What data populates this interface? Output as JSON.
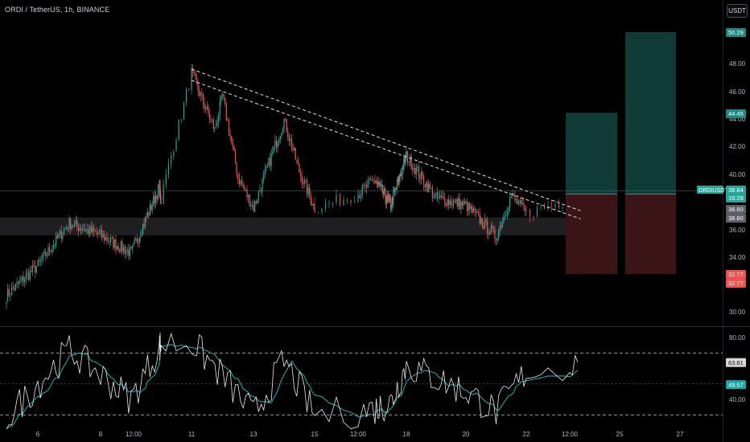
{
  "header": {
    "symbol_title": "ORDI / TetherUS, 1h, BINANCE",
    "currency_button": "USDT"
  },
  "colors": {
    "up": "#26a69a",
    "down": "#ef5350",
    "rsi_line": "#e8e8e8",
    "rsi_ma": "#19b3b0",
    "profit_zone": "#0f3a36",
    "loss_zone": "#3b1417",
    "support_zone": "#2a2a2d"
  },
  "chart_data": [
    {
      "type": "candlestick",
      "title": "ORDI / TetherUS, 1h, BINANCE",
      "x_ticks": [
        "6",
        "8",
        "12:00",
        "11",
        "13",
        "15",
        "12:00",
        "18",
        "20",
        "22",
        "12:00",
        "25",
        "27"
      ],
      "y_ticks": [
        "48.00",
        "46.00",
        "44.00",
        "42.00",
        "40.00",
        "36.00",
        "34.00",
        "32.00",
        "30.00"
      ],
      "ylim": [
        29.0,
        52.0
      ],
      "keypoints": [
        {
          "x": "5",
          "close": 31.2
        },
        {
          "x": "6",
          "close": 33.4
        },
        {
          "x": "7",
          "close": 36.5
        },
        {
          "x": "8",
          "close": 35.6
        },
        {
          "x": "9",
          "close": 34.3
        },
        {
          "x": "10",
          "close": 39.1
        },
        {
          "x": "10 12:00",
          "close": 38.3
        },
        {
          "x": "11",
          "close": 47.3
        },
        {
          "x": "11 18:00",
          "close": 43.2
        },
        {
          "x": "12",
          "close": 45.7
        },
        {
          "x": "12 12:00",
          "close": 39.8
        },
        {
          "x": "13",
          "close": 37.6
        },
        {
          "x": "14",
          "close": 43.9
        },
        {
          "x": "14 12:00",
          "close": 40.2
        },
        {
          "x": "15",
          "close": 37.6
        },
        {
          "x": "16",
          "close": 39.6
        },
        {
          "x": "17",
          "close": 37.8
        },
        {
          "x": "18",
          "close": 41.3
        },
        {
          "x": "19",
          "close": 38.3
        },
        {
          "x": "20",
          "close": 37.8
        },
        {
          "x": "21",
          "close": 35.5
        },
        {
          "x": "21 12:00",
          "close": 38.5
        },
        {
          "x": "22",
          "close": 37.2
        },
        {
          "x": "22 18:00",
          "close": 38.7
        }
      ],
      "trendlines": [
        {
          "name": "upper",
          "from": {
            "x": "11",
            "y": 47.6
          },
          "to": {
            "x": "22 20:00",
            "y": 37.4
          }
        },
        {
          "name": "lower",
          "from": {
            "x": "11",
            "y": 46.8
          },
          "to": {
            "x": "22 20:00",
            "y": 36.8
          }
        }
      ],
      "support_zone": [
        35.6,
        36.9
      ],
      "positions": [
        {
          "entry": 38.6,
          "target": 44.45,
          "stop": 32.77
        },
        {
          "entry": 38.6,
          "target": 50.29,
          "stop": 32.77
        }
      ],
      "price_labels": [
        {
          "text": "50.29",
          "value": 50.29,
          "kind": "profit"
        },
        {
          "text": "44.45",
          "value": 44.45,
          "kind": "profit"
        },
        {
          "text": "ORDIUSDT",
          "value": 38.84,
          "kind": "symbol"
        },
        {
          "text": "38.84",
          "value": 38.84,
          "kind": "last"
        },
        {
          "text": "16:28",
          "value": 38.84,
          "kind": "countdown"
        },
        {
          "text": "38.60",
          "value": 38.6,
          "kind": "entry"
        },
        {
          "text": "38.60",
          "value": 38.6,
          "kind": "entry"
        },
        {
          "text": "32.77",
          "value": 32.77,
          "kind": "loss"
        },
        {
          "text": "32.77",
          "value": 32.77,
          "kind": "loss"
        }
      ]
    },
    {
      "type": "line",
      "y_ticks": [
        "80.00",
        "40.00"
      ],
      "ylim": [
        18,
        88
      ],
      "bands": [
        70,
        30
      ],
      "series_keypoints": [
        {
          "x": "5",
          "rsi": 28
        },
        {
          "x": "7",
          "rsi": 72
        },
        {
          "x": "9",
          "rsi": 40
        },
        {
          "x": "10",
          "rsi": 74
        },
        {
          "x": "11",
          "rsi": 77
        },
        {
          "x": "12",
          "rsi": 55
        },
        {
          "x": "13",
          "rsi": 30
        },
        {
          "x": "14",
          "rsi": 65
        },
        {
          "x": "15",
          "rsi": 30
        },
        {
          "x": "17",
          "rsi": 38
        },
        {
          "x": "18",
          "rsi": 62
        },
        {
          "x": "20",
          "rsi": 45
        },
        {
          "x": "21",
          "rsi": 32
        },
        {
          "x": "22",
          "rsi": 58
        },
        {
          "x": "22 18:00",
          "rsi": 64
        }
      ],
      "price_labels": [
        {
          "text": "63.81",
          "value": 63.81,
          "kind": "rsi"
        },
        {
          "text": "49.57",
          "value": 49.57,
          "kind": "ma"
        }
      ]
    }
  ]
}
